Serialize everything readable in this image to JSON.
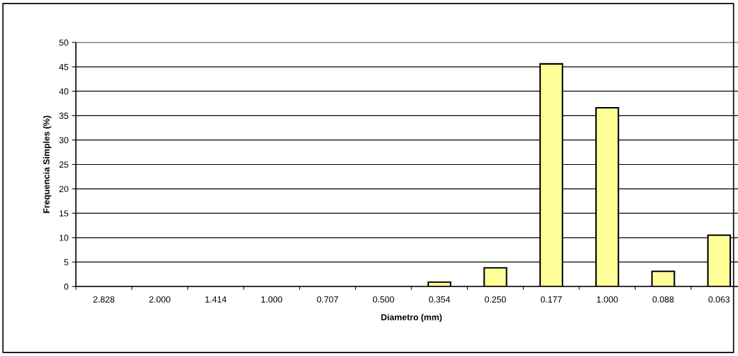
{
  "chart_data": {
    "type": "bar",
    "xlabel": "Diametro (mm)",
    "ylabel": "Frequencia Simples (%)",
    "categories": [
      "2.828",
      "2.000",
      "1.414",
      "1.000",
      "0.707",
      "0.500",
      "0.354",
      "0.250",
      "0.177",
      "1.000",
      "0.088",
      "0.063"
    ],
    "values": [
      0,
      0,
      0,
      0,
      0,
      0,
      0.9,
      3.8,
      45.6,
      36.6,
      3.1,
      10.5
    ],
    "color": "#ffff99",
    "ylim": [
      0,
      50
    ],
    "yticks": [
      0,
      5,
      10,
      15,
      20,
      25,
      30,
      35,
      40,
      45,
      50
    ],
    "grid": "y"
  }
}
